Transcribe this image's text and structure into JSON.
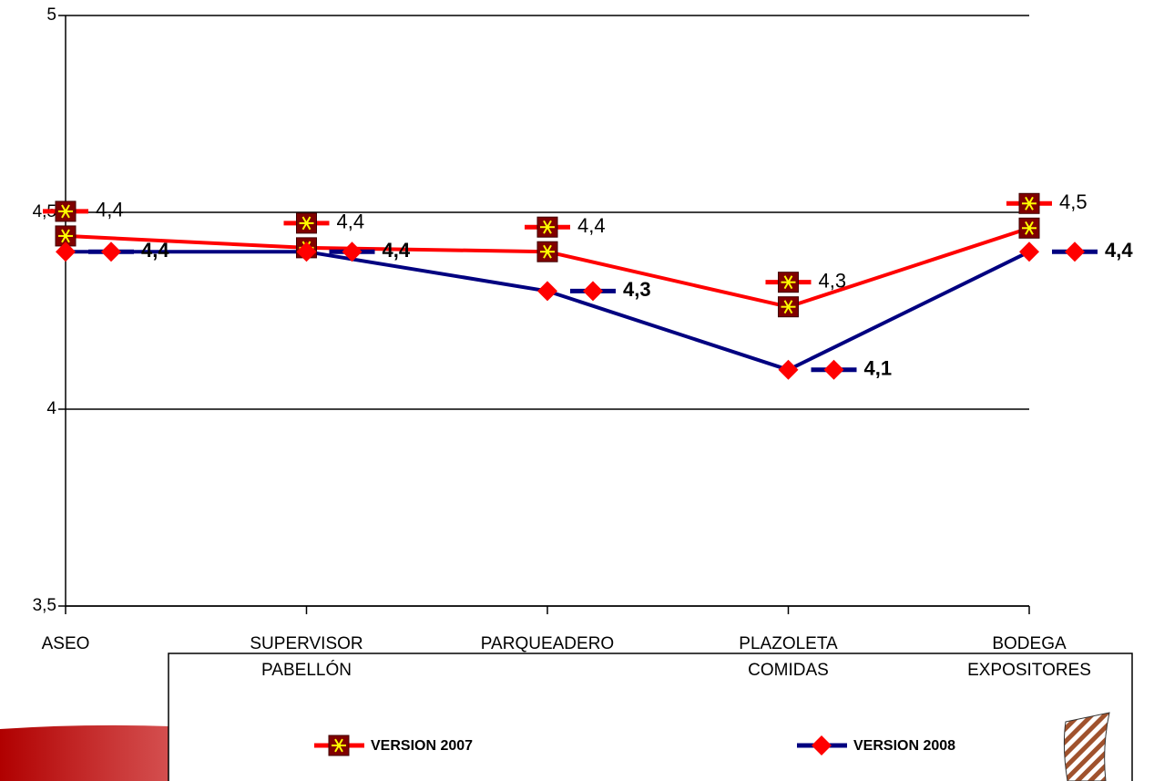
{
  "chart_data": {
    "type": "line",
    "categories": [
      "ASEO",
      "SUPERVISOR\nPABELLÓN",
      "PARQUEADERO",
      "PLAZOLETA COMIDAS",
      "BODEGA\nEXPOSITORES"
    ],
    "series": [
      {
        "name": "VERSION 2007",
        "color": "#ff0000",
        "values": [
          4.44,
          4.41,
          4.4,
          4.26,
          4.46
        ],
        "value_labels": [
          "4,4",
          "4,4",
          "4,4",
          "4,3",
          "4,5"
        ]
      },
      {
        "name": "VERSION 2008",
        "color": "#000080",
        "values": [
          4.4,
          4.4,
          4.3,
          4.1,
          4.4
        ],
        "value_labels": [
          "4,4",
          "4,4",
          "4,3",
          "4,1",
          "4,4"
        ]
      }
    ],
    "ylim": [
      3.5,
      5
    ],
    "yticks": [
      {
        "value": 3.5,
        "label": "3,5"
      },
      4,
      {
        "value": 4.5,
        "label": "4,5"
      },
      5
    ],
    "grid": true
  }
}
